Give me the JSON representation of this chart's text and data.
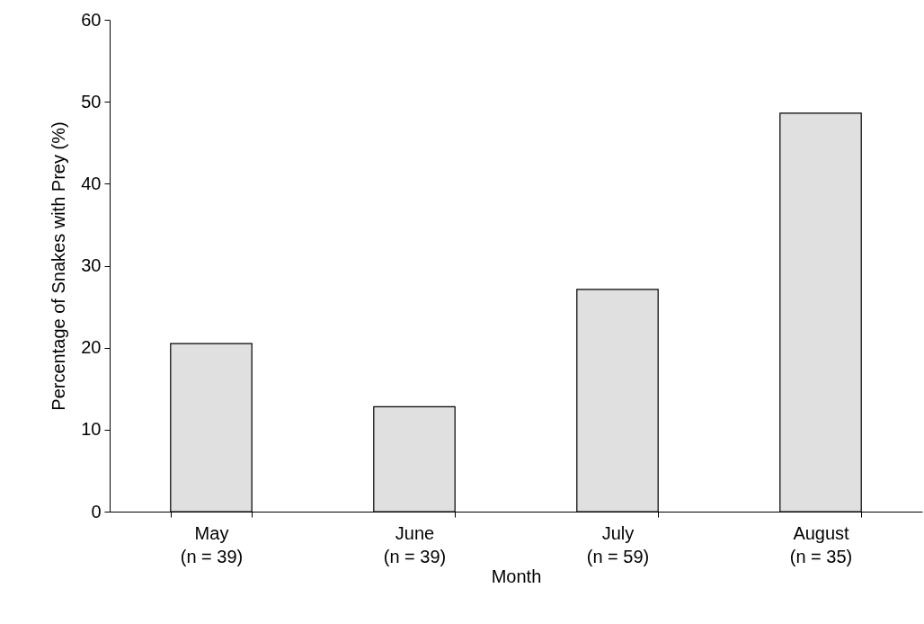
{
  "chart_data": {
    "type": "bar",
    "xlabel": "Month",
    "ylabel": "Percentage of Snakes with Prey (%)",
    "categories": [
      "May\n(n = 39)",
      "June\n(n = 39)",
      "July\n(n = 59)",
      "August\n(n = 35)"
    ],
    "values": [
      20.5,
      12.8,
      27.1,
      48.6
    ],
    "color": "#e0e0e0",
    "ylim": [
      0,
      60
    ],
    "yticks": [
      0,
      10,
      20,
      30,
      40,
      50,
      60
    ],
    "grid": false
  }
}
